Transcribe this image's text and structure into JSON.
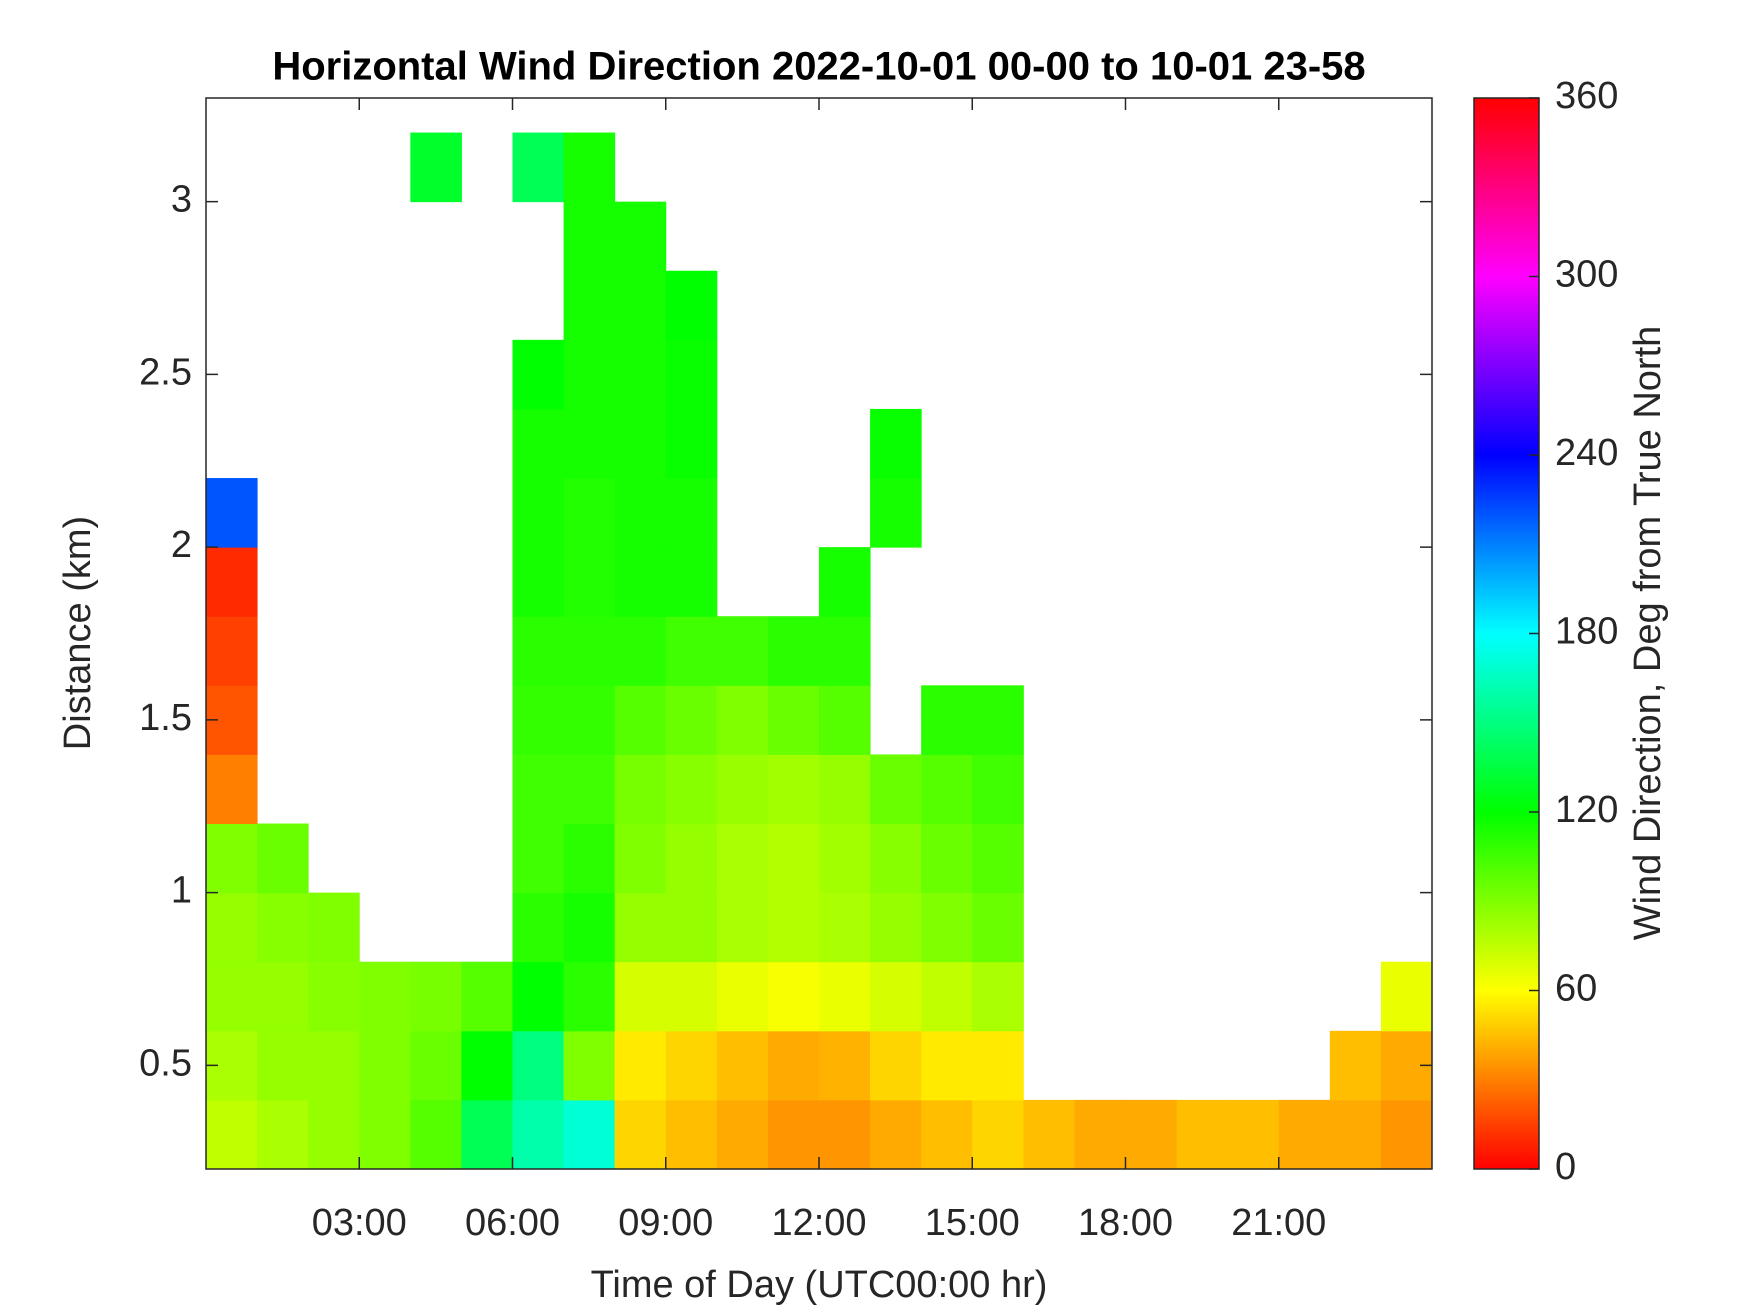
{
  "chart_data": {
    "type": "heatmap",
    "title": "Horizontal Wind Direction 2022-10-01 00-00 to 10-01 23-58",
    "x_label": "Time of Day (UTC00:00 hr)",
    "y_label": "Distance (km)",
    "colorbar_label": "Wind Direction, Deg from True North",
    "colormap": "hsv",
    "x": [
      0.5,
      1.5,
      2.5,
      3.5,
      4.5,
      5.5,
      6.5,
      7.5,
      8.5,
      9.5,
      10.5,
      11.5,
      12.5,
      13.5,
      14.5,
      15.5,
      16.5,
      17.5,
      18.5,
      19.5,
      20.5,
      21.5,
      22.5,
      23.5
    ],
    "y": [
      0.3,
      0.5,
      0.7,
      0.9,
      1.1,
      1.3,
      1.5,
      1.7,
      1.9,
      2.1,
      2.3,
      2.5,
      2.7,
      2.9,
      3.1
    ],
    "z": [
      [
        75,
        80,
        85,
        90,
        100,
        140,
        160,
        170,
        50,
        45,
        40,
        35,
        35,
        40,
        45,
        50,
        45,
        40,
        40,
        45,
        45,
        40,
        40,
        35
      ],
      [
        80,
        85,
        85,
        90,
        95,
        120,
        150,
        90,
        55,
        50,
        45,
        40,
        42,
        50,
        55,
        55,
        null,
        null,
        null,
        null,
        null,
        null,
        45,
        40
      ],
      [
        85,
        85,
        88,
        90,
        92,
        100,
        120,
        110,
        70,
        70,
        65,
        62,
        65,
        70,
        75,
        80,
        null,
        null,
        null,
        null,
        null,
        null,
        null,
        65
      ],
      [
        85,
        88,
        90,
        null,
        null,
        null,
        110,
        115,
        85,
        85,
        80,
        78,
        80,
        85,
        90,
        95,
        null,
        null,
        null,
        null,
        null,
        null,
        null,
        null
      ],
      [
        90,
        95,
        null,
        null,
        null,
        null,
        105,
        110,
        90,
        85,
        80,
        78,
        82,
        88,
        95,
        100,
        null,
        null,
        null,
        null,
        null,
        null,
        null,
        null
      ],
      [
        30,
        null,
        null,
        null,
        null,
        null,
        105,
        105,
        92,
        88,
        84,
        82,
        85,
        95,
        100,
        105,
        null,
        null,
        null,
        null,
        null,
        null,
        null,
        null
      ],
      [
        20,
        null,
        null,
        null,
        null,
        null,
        108,
        108,
        100,
        95,
        90,
        95,
        100,
        null,
        110,
        110,
        null,
        null,
        null,
        null,
        null,
        null,
        null,
        null
      ],
      [
        15,
        null,
        null,
        null,
        null,
        null,
        110,
        110,
        110,
        105,
        105,
        110,
        110,
        null,
        null,
        null,
        null,
        null,
        null,
        null,
        null,
        null,
        null,
        null
      ],
      [
        10,
        null,
        null,
        null,
        null,
        null,
        115,
        112,
        115,
        115,
        null,
        null,
        115,
        null,
        null,
        null,
        null,
        null,
        null,
        null,
        null,
        null,
        null,
        null
      ],
      [
        220,
        null,
        null,
        null,
        null,
        null,
        115,
        112,
        115,
        115,
        null,
        null,
        null,
        115,
        null,
        null,
        null,
        null,
        null,
        null,
        null,
        null,
        null,
        null
      ],
      [
        null,
        null,
        null,
        null,
        null,
        null,
        115,
        115,
        115,
        118,
        null,
        null,
        null,
        118,
        null,
        null,
        null,
        null,
        null,
        null,
        null,
        null,
        null,
        null
      ],
      [
        null,
        null,
        null,
        null,
        null,
        null,
        120,
        115,
        115,
        118,
        null,
        null,
        null,
        null,
        null,
        null,
        null,
        null,
        null,
        null,
        null,
        null,
        null,
        null
      ],
      [
        null,
        null,
        null,
        null,
        null,
        null,
        null,
        115,
        115,
        120,
        null,
        null,
        null,
        null,
        null,
        null,
        null,
        null,
        null,
        null,
        null,
        null,
        null,
        null
      ],
      [
        null,
        null,
        null,
        null,
        null,
        null,
        null,
        115,
        115,
        null,
        null,
        null,
        null,
        null,
        null,
        null,
        null,
        null,
        null,
        null,
        null,
        null,
        null,
        null
      ],
      [
        null,
        null,
        null,
        null,
        130,
        null,
        140,
        115,
        null,
        null,
        null,
        null,
        null,
        null,
        null,
        null,
        null,
        null,
        null,
        null,
        null,
        null,
        null,
        null
      ]
    ],
    "xlim": [
      0,
      24
    ],
    "xticks": [
      {
        "value": 3,
        "label": "03:00"
      },
      {
        "value": 6,
        "label": "06:00"
      },
      {
        "value": 9,
        "label": "09:00"
      },
      {
        "value": 12,
        "label": "12:00"
      },
      {
        "value": 15,
        "label": "15:00"
      },
      {
        "value": 18,
        "label": "18:00"
      },
      {
        "value": 21,
        "label": "21:00"
      }
    ],
    "ylim": [
      0.2,
      3.3
    ],
    "yticks": [
      0.5,
      1,
      1.5,
      2,
      2.5,
      3
    ],
    "clim": [
      0,
      360
    ],
    "cticks": [
      0,
      60,
      120,
      180,
      240,
      300,
      360
    ]
  }
}
